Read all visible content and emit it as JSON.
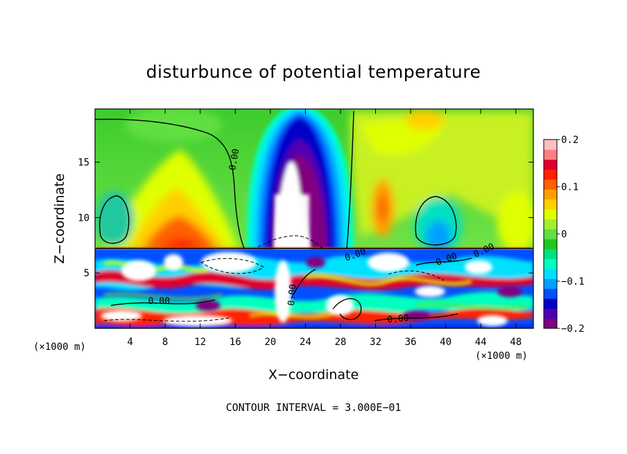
{
  "chart_data": {
    "type": "heatmap",
    "title": "disturbunce of potential temperature",
    "xlabel": "X−coordinate",
    "ylabel": "Z−coordinate",
    "x_unit_label": "(×1000 m)",
    "y_unit_label": "(×1000 m)",
    "xlim": [
      0,
      50
    ],
    "ylim": [
      0,
      19.8
    ],
    "x_ticks": [
      4,
      8,
      12,
      16,
      20,
      24,
      28,
      32,
      36,
      40,
      44,
      48
    ],
    "y_ticks": [
      5,
      10,
      15
    ],
    "colorbar": {
      "min": -0.2,
      "max": 0.2,
      "tick_values": [
        0.2,
        0.1,
        0,
        -0.1,
        -0.2
      ],
      "tick_labels": [
        "0.2",
        "0.1",
        "0",
        "−0.1",
        "−0.2"
      ],
      "colors": [
        "#800080",
        "#5000b0",
        "#0000c8",
        "#0050ff",
        "#00a0ff",
        "#00e0ff",
        "#00ffc0",
        "#00e080",
        "#20c820",
        "#60e040",
        "#a0f030",
        "#e0ff00",
        "#ffd000",
        "#ffa000",
        "#ff6000",
        "#ff2000",
        "#e00030",
        "#ff8080",
        "#ffc0c0"
      ]
    },
    "contour_interval_text": "CONTOUR INTERVAL = 3.000E−01",
    "contour_labels": [
      "0.00",
      "0.00",
      "0.00",
      "0.00",
      "0.00",
      "0.00",
      "0.00"
    ],
    "features": [
      {
        "name": "strong cold anomaly column",
        "x_range": [
          19,
          25
        ],
        "z_range": [
          7.3,
          19.8
        ],
        "value": "below −0.2"
      },
      {
        "name": "warm anomaly band",
        "x_range": [
          5,
          15
        ],
        "z_range": [
          7.3,
          10.5
        ],
        "value": 0.12
      },
      {
        "name": "turbulent boundary layer",
        "x_range": [
          0,
          50
        ],
        "z_range": [
          0,
          7.3
        ],
        "value": "mixed"
      }
    ]
  }
}
